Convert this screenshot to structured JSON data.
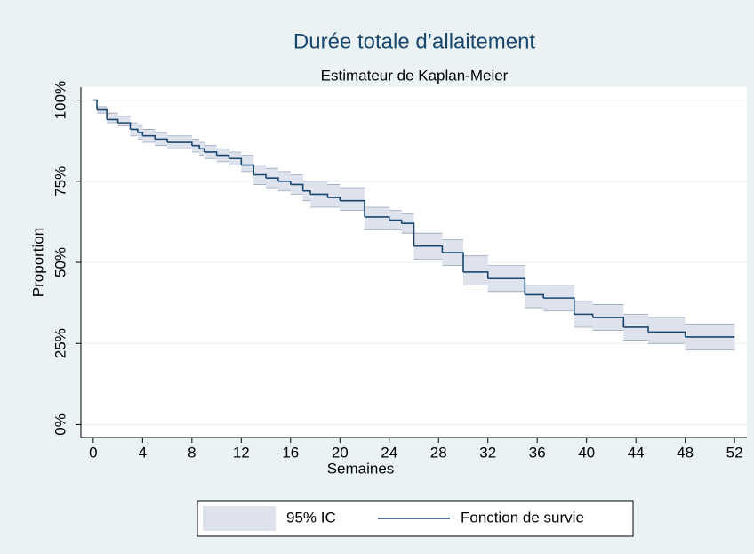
{
  "chart_data": {
    "type": "step",
    "title": "Durée totale d’allaitement",
    "subtitle": "Estimateur de Kaplan-Meier",
    "x_label": "Semaines",
    "y_label": "Proportion",
    "x": [
      0,
      0.3,
      1.1,
      2,
      3,
      3.6,
      4,
      5,
      6,
      8,
      8.6,
      9,
      10,
      11,
      12,
      13,
      14,
      15,
      16,
      17,
      17.6,
      19,
      20,
      22,
      24,
      25,
      26,
      28.3,
      30,
      32,
      35,
      36.5,
      39,
      40.5,
      43,
      45,
      48,
      52
    ],
    "series": [
      {
        "name": "Fonction de survie",
        "color": "#1a476f",
        "values": [
          100,
          97,
          94,
          93,
          91,
          90,
          89,
          88,
          87,
          86,
          85,
          84,
          83,
          82,
          80,
          77,
          76,
          75,
          74,
          72,
          71,
          70,
          69,
          64,
          63,
          62,
          55,
          53,
          47,
          45,
          40,
          39,
          34,
          33,
          30,
          28.5,
          27,
          27
        ]
      }
    ],
    "band": {
      "name": "95% IC",
      "color": "#dde2ec",
      "lower": [
        100,
        96,
        93,
        92,
        89,
        88,
        87,
        86,
        85,
        84,
        83,
        82,
        81,
        80,
        78,
        74,
        73,
        72,
        71,
        69,
        67,
        67,
        66,
        60,
        60,
        59,
        51,
        49,
        43,
        41,
        36,
        35,
        30,
        29,
        26,
        25,
        23,
        23
      ],
      "upper": [
        100,
        98,
        96,
        95,
        93,
        92,
        91,
        90,
        89,
        88,
        87,
        86,
        85,
        84,
        83,
        80,
        79,
        78,
        77,
        75,
        75,
        74,
        73,
        67,
        66,
        65,
        59,
        57,
        52,
        49,
        43,
        43,
        38,
        37,
        34,
        33,
        31,
        31
      ]
    },
    "xlim": [
      -1,
      53
    ],
    "ylim": [
      -4,
      104
    ],
    "xticks": [
      0,
      4,
      8,
      12,
      16,
      20,
      24,
      28,
      32,
      36,
      40,
      44,
      48,
      52
    ],
    "yticks": [
      {
        "value": 0,
        "label": "0%"
      },
      {
        "value": 25,
        "label": "25%"
      },
      {
        "value": 50,
        "label": "50%"
      },
      {
        "value": 75,
        "label": "75%"
      },
      {
        "value": 100,
        "label": "100%"
      }
    ],
    "grid": true,
    "legend": "bottom"
  }
}
